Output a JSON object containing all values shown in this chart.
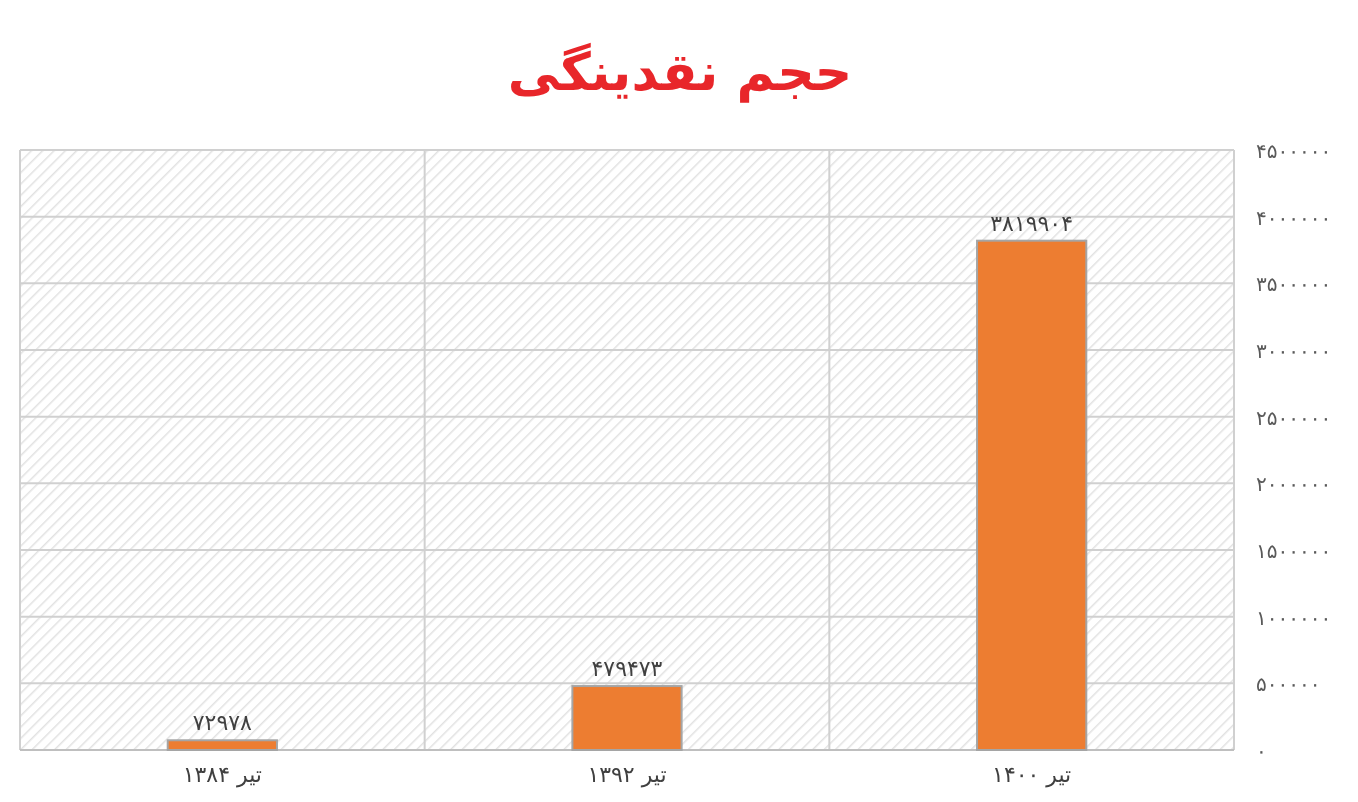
{
  "chart_data": {
    "type": "bar",
    "title": "حجم نقدینگی",
    "categories": [
      "تیر ۱۳۸۴",
      "تیر ۱۳۹۲",
      "تیر ۱۴۰۰"
    ],
    "values": [
      72978,
      479473,
      3819904
    ],
    "value_labels": [
      "۷۲۹۷۸",
      "۴۷۹۴۷۳",
      "۳۸۱۹۹۰۴"
    ],
    "color": "#ed7d31",
    "ylim": [
      0,
      4500000
    ],
    "yticks": [
      {
        "value": 0,
        "label": "۰"
      },
      {
        "value": 500000,
        "label": "۵۰۰۰۰۰"
      },
      {
        "value": 1000000,
        "label": "۱۰۰۰۰۰۰"
      },
      {
        "value": 1500000,
        "label": "۱۵۰۰۰۰۰"
      },
      {
        "value": 2000000,
        "label": "۲۰۰۰۰۰۰"
      },
      {
        "value": 2500000,
        "label": "۲۵۰۰۰۰۰"
      },
      {
        "value": 3000000,
        "label": "۳۰۰۰۰۰۰"
      },
      {
        "value": 3500000,
        "label": "۳۵۰۰۰۰۰"
      },
      {
        "value": 4000000,
        "label": "۴۰۰۰۰۰۰"
      },
      {
        "value": 4500000,
        "label": "۴۵۰۰۰۰۰"
      }
    ],
    "grid": true
  }
}
